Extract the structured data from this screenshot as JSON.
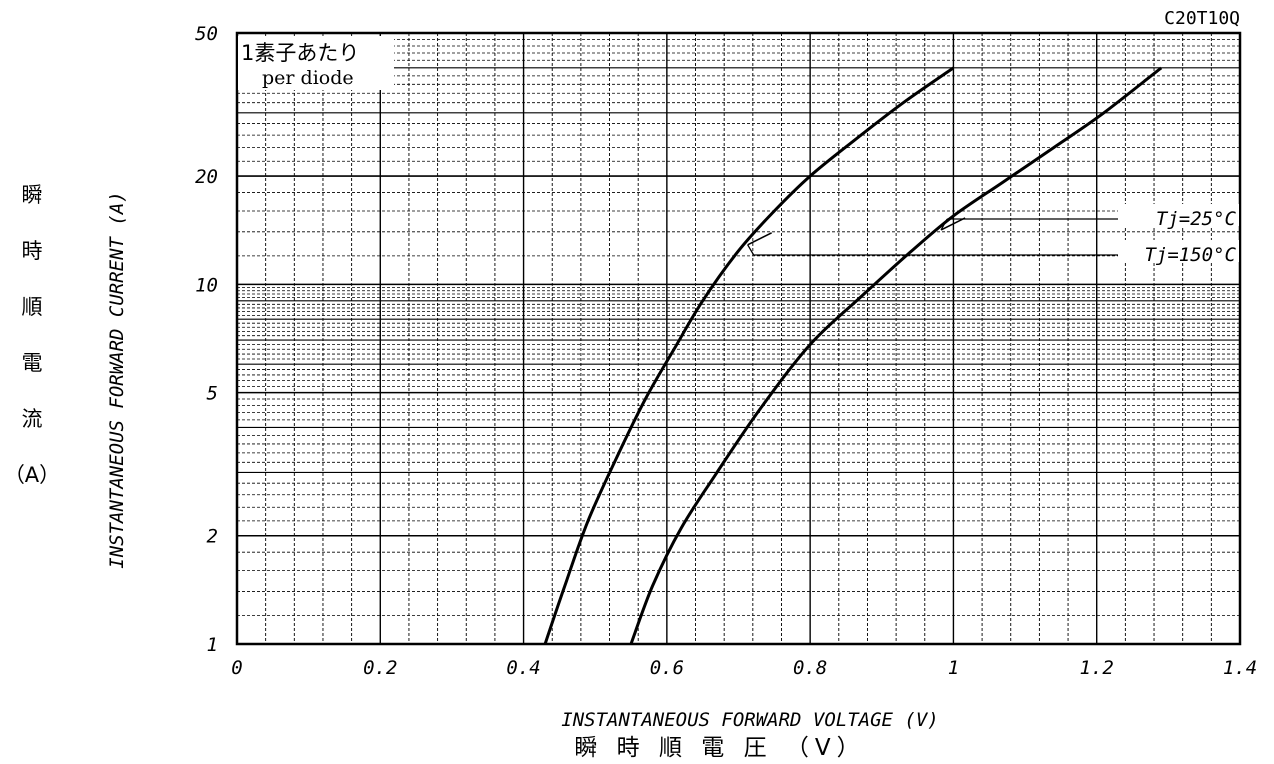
{
  "chart_data": {
    "type": "line",
    "model": "C20T10Q",
    "note_line1": "1素子あたり",
    "note_line2": "per diode",
    "xlabel": "INSTANTANEOUS FORWARD VOLTAGE (V)",
    "xlabel_jp": "瞬 時 順 電 圧 （V）",
    "ylabel": "INSTANTANEOUS FORWARD CURRENT (A)",
    "ylabel_jp": [
      "瞬",
      "時",
      "順",
      "電",
      "流",
      "（A）"
    ],
    "x_ticks": [
      "0",
      "0.2",
      "0.4",
      "0.6",
      "0.8",
      "1",
      "1.2",
      "1.4"
    ],
    "y_ticks": [
      "1",
      "2",
      "5",
      "10",
      "20",
      "50"
    ],
    "xlim": [
      0,
      1.4
    ],
    "ylim": [
      1,
      50
    ],
    "y_scale": "log",
    "grid": true,
    "series": [
      {
        "name": "Tj=150°C",
        "x": [
          0.43,
          0.46,
          0.49,
          0.53,
          0.57,
          0.61,
          0.65,
          0.7,
          0.75,
          0.8,
          0.86,
          0.93,
          1.0
        ],
        "y": [
          1.0,
          1.5,
          2.2,
          3.3,
          4.8,
          6.6,
          9.0,
          12.4,
          16.0,
          20.0,
          25.0,
          32.0,
          40.0
        ]
      },
      {
        "name": "Tj=25°C",
        "x": [
          0.55,
          0.58,
          0.62,
          0.67,
          0.73,
          0.8,
          0.87,
          0.94,
          1.0,
          1.07,
          1.14,
          1.21,
          1.29
        ],
        "y": [
          1.0,
          1.45,
          2.1,
          3.0,
          4.5,
          6.8,
          9.2,
          12.3,
          15.5,
          19.3,
          24.0,
          30.0,
          40.0
        ]
      }
    ],
    "annotations": [
      {
        "text": "Tj=25°C",
        "series": "Tj=25°C",
        "at_x": 0.98
      },
      {
        "text": "Tj=150°C",
        "series": "Tj=150°C",
        "at_x": 0.71
      }
    ]
  }
}
